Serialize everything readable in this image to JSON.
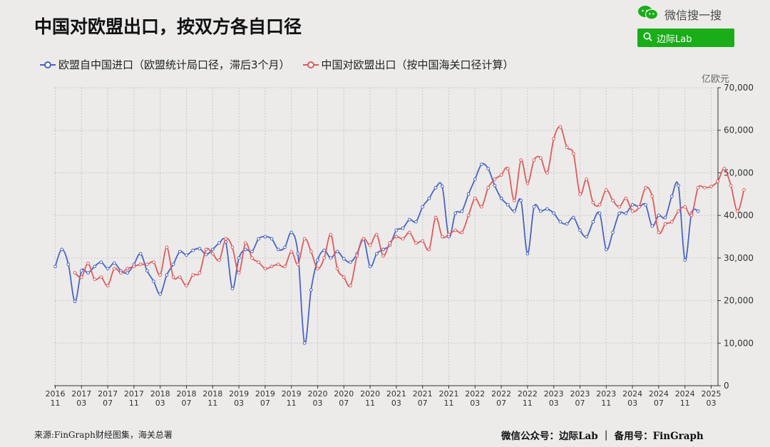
{
  "header": {
    "title": "中国对欧盟出口，按双方各自口径",
    "wechat_label": "微信搜一搜",
    "wechat_icon": "wechat-icon",
    "search_icon": "search-icon",
    "search_text": "边际Lab",
    "search_color": "#1aad19"
  },
  "footer": {
    "source": "来源:FinGraph财经图集，海关总署",
    "right": "微信公众号：边际Lab ｜ 备用号：FinGraph"
  },
  "chart_data": {
    "type": "line",
    "xlabel": "",
    "ylabel": "亿欧元",
    "ylim": [
      0,
      70000
    ],
    "yticks": [
      0,
      10000,
      20000,
      30000,
      40000,
      50000,
      60000,
      70000
    ],
    "ytick_labels": [
      "0",
      "10,000",
      "20,000",
      "30,000",
      "40,000",
      "50,000",
      "60,000",
      "70,000"
    ],
    "x_tick_labels": [
      {
        "y": "2016",
        "m": "11"
      },
      {
        "y": "2017",
        "m": "03"
      },
      {
        "y": "2017",
        "m": "07"
      },
      {
        "y": "2017",
        "m": "11"
      },
      {
        "y": "2018",
        "m": "03"
      },
      {
        "y": "2018",
        "m": "07"
      },
      {
        "y": "2018",
        "m": "11"
      },
      {
        "y": "2019",
        "m": "03"
      },
      {
        "y": "2019",
        "m": "07"
      },
      {
        "y": "2019",
        "m": "11"
      },
      {
        "y": "2020",
        "m": "03"
      },
      {
        "y": "2020",
        "m": "07"
      },
      {
        "y": "2020",
        "m": "11"
      },
      {
        "y": "2021",
        "m": "03"
      },
      {
        "y": "2021",
        "m": "07"
      },
      {
        "y": "2021",
        "m": "11"
      },
      {
        "y": "2022",
        "m": "03"
      },
      {
        "y": "2022",
        "m": "07"
      },
      {
        "y": "2022",
        "m": "11"
      },
      {
        "y": "2023",
        "m": "03"
      },
      {
        "y": "2023",
        "m": "07"
      },
      {
        "y": "2023",
        "m": "11"
      },
      {
        "y": "2024",
        "m": "03"
      },
      {
        "y": "2024",
        "m": "07"
      },
      {
        "y": "2024",
        "m": "11"
      },
      {
        "y": "2025",
        "m": "03"
      }
    ],
    "grid": true,
    "legend_position": "top-left",
    "series": [
      {
        "name": "欧盟自中国进口（欧盟统计局口径，滞后3个月）",
        "color": "#4a64c4",
        "start_index": 0,
        "values": [
          28000,
          32000,
          28500,
          19800,
          27000,
          26500,
          28000,
          29000,
          27500,
          28800,
          27000,
          26500,
          28500,
          31000,
          27000,
          24500,
          21500,
          26000,
          28500,
          31500,
          30700,
          31800,
          32200,
          30800,
          32000,
          33500,
          33800,
          22800,
          30000,
          32000,
          31500,
          34500,
          35000,
          34500,
          32000,
          32500,
          36000,
          31000,
          10000,
          22500,
          29500,
          31800,
          30000,
          31500,
          29800,
          29000,
          31000,
          34500,
          28000,
          31000,
          32000,
          33000,
          36500,
          37000,
          39000,
          38500,
          42000,
          44000,
          46500,
          46800,
          35000,
          40500,
          41000,
          45000,
          48500,
          52000,
          51000,
          47000,
          44000,
          42500,
          41000,
          43500,
          31000,
          42000,
          41000,
          41500,
          40500,
          38500,
          38000,
          39500,
          36500,
          35000,
          38500,
          40500,
          32000,
          36000,
          40500,
          40500,
          42500,
          42000,
          42500,
          37500,
          40000,
          39500,
          44500,
          47000,
          29500,
          40500,
          41000
        ]
      },
      {
        "name": "中国对欧盟出口（按中国海关口径计算）",
        "color": "#e05b5b",
        "start_index": 3,
        "values": [
          26500,
          25500,
          28700,
          25000,
          25500,
          23500,
          27500,
          26500,
          27500,
          28000,
          28500,
          28500,
          29000,
          26000,
          32500,
          25500,
          25500,
          23500,
          26000,
          26500,
          32000,
          31000,
          29500,
          34500,
          32500,
          26500,
          33500,
          30000,
          29000,
          27500,
          28000,
          28500,
          28000,
          31500,
          28500,
          34500,
          31500,
          27500,
          30000,
          35500,
          27500,
          25500,
          23500,
          30500,
          34500,
          33000,
          35500,
          30500,
          33500,
          35000,
          34500,
          36000,
          33500,
          34000,
          32000,
          39500,
          35000,
          35500,
          36500,
          36000,
          40000,
          44000,
          42000,
          46500,
          48500,
          49500,
          51000,
          43500,
          53000,
          47500,
          53000,
          53500,
          50000,
          58000,
          60800,
          56000,
          54500,
          45000,
          48500,
          43000,
          42500,
          46000,
          43500,
          42000,
          44000,
          41000,
          42000,
          46500,
          44500,
          36000,
          38000,
          38500,
          41000,
          42000,
          40000,
          46500,
          46500,
          46800,
          48000,
          51000,
          47000,
          41000,
          46000
        ]
      }
    ]
  }
}
